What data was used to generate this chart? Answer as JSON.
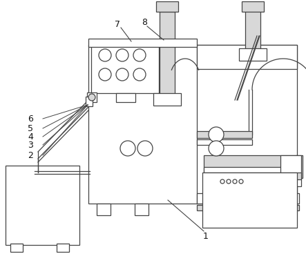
{
  "bg_color": "#ffffff",
  "line_color": "#444444",
  "fc_white": "#ffffff",
  "fc_light": "#d8d8d8",
  "fc_gray": "#bbbbbb",
  "lw": 0.9,
  "figsize": [
    4.43,
    3.71
  ],
  "dpi": 100
}
